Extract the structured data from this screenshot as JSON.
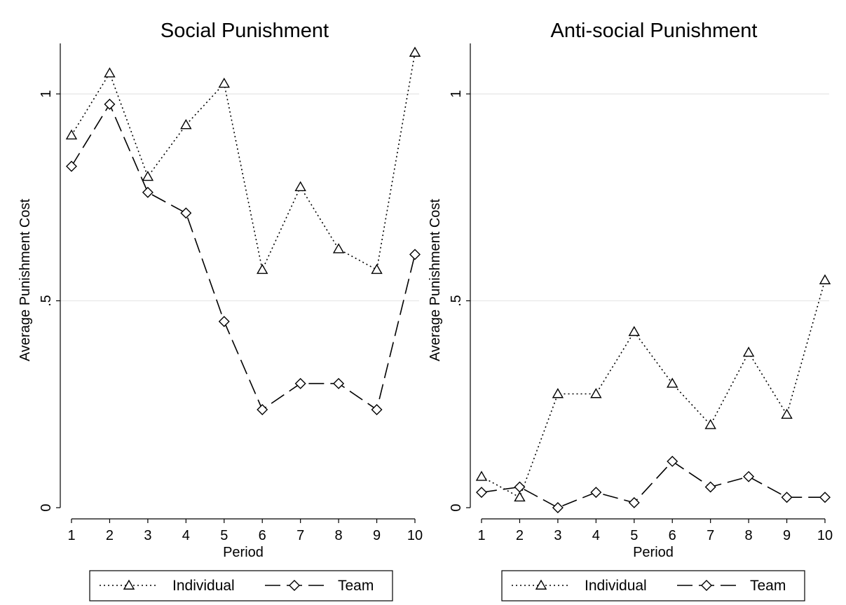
{
  "chart_data": [
    {
      "type": "line",
      "title": "Social Punishment",
      "xlabel": "Period",
      "ylabel": "Average Punishment Cost",
      "x": [
        1,
        2,
        3,
        4,
        5,
        6,
        7,
        8,
        9,
        10
      ],
      "x_tick_labels": [
        "1",
        "2",
        "3",
        "4",
        "5",
        "6",
        "7",
        "8",
        "9",
        "10"
      ],
      "y_ticks": [
        0,
        0.5,
        1
      ],
      "y_tick_labels": [
        "0",
        ".5",
        "1"
      ],
      "ylim": [
        0,
        1.1
      ],
      "grid": true,
      "legend_position": "bottom",
      "series": [
        {
          "name": "Individual",
          "marker": "triangle",
          "dash": "dotted",
          "values": [
            0.9,
            1.05,
            0.8,
            0.925,
            1.025,
            0.575,
            0.775,
            0.625,
            0.575,
            1.1
          ]
        },
        {
          "name": "Team",
          "marker": "diamond",
          "dash": "long-dash",
          "values": [
            0.825,
            0.975,
            0.762,
            0.712,
            0.45,
            0.237,
            0.3,
            0.3,
            0.237,
            0.612
          ]
        }
      ]
    },
    {
      "type": "line",
      "title": "Anti-social Punishment",
      "xlabel": "Period",
      "ylabel": "Average Punishment Cost",
      "x": [
        1,
        2,
        3,
        4,
        5,
        6,
        7,
        8,
        9,
        10
      ],
      "x_tick_labels": [
        "1",
        "2",
        "3",
        "4",
        "5",
        "6",
        "7",
        "8",
        "9",
        "10"
      ],
      "y_ticks": [
        0,
        0.5,
        1
      ],
      "y_tick_labels": [
        "0",
        ".5",
        "1"
      ],
      "ylim": [
        0,
        1.1
      ],
      "grid": true,
      "legend_position": "bottom",
      "series": [
        {
          "name": "Individual",
          "marker": "triangle",
          "dash": "dotted",
          "values": [
            0.075,
            0.025,
            0.275,
            0.275,
            0.425,
            0.3,
            0.2,
            0.375,
            0.225,
            0.55
          ]
        },
        {
          "name": "Team",
          "marker": "diamond",
          "dash": "long-dash",
          "values": [
            0.037,
            0.05,
            0.0,
            0.037,
            0.012,
            0.112,
            0.05,
            0.075,
            0.025,
            0.025
          ]
        }
      ]
    }
  ]
}
